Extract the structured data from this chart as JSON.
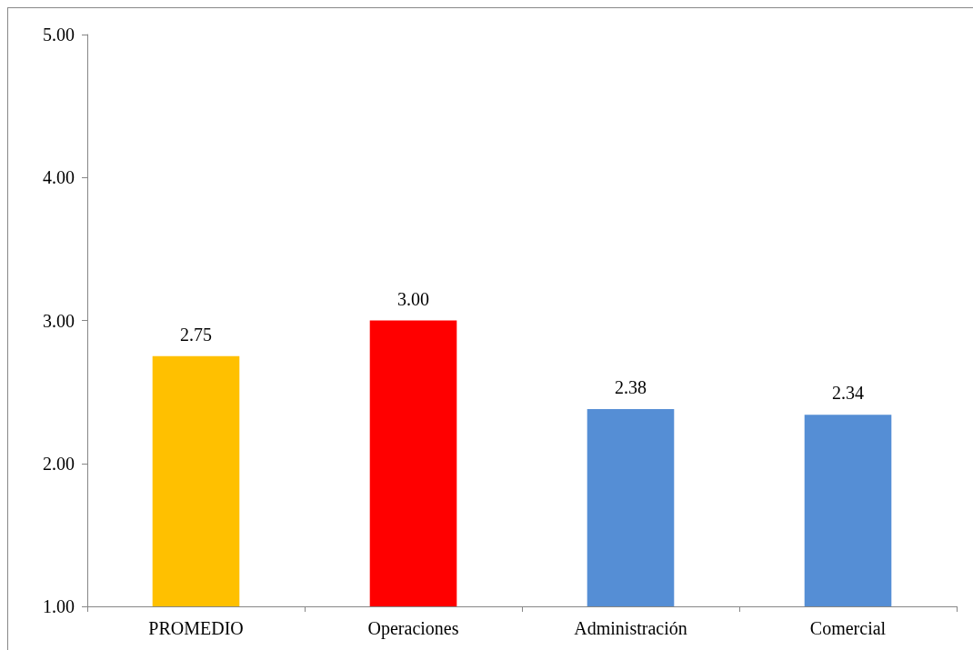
{
  "chart_data": {
    "type": "bar",
    "categories": [
      "PROMEDIO",
      "Operaciones",
      "Administración",
      "Comercial"
    ],
    "values": [
      2.75,
      3.0,
      2.38,
      2.34
    ],
    "colors": [
      "#ffc000",
      "#ff0000",
      "#558ed5",
      "#558ed5"
    ],
    "value_labels": [
      "2.75",
      "3.00",
      "2.38",
      "2.34"
    ],
    "ylim": [
      1,
      5
    ],
    "yticks": [
      {
        "value": 1,
        "label": "1.00"
      },
      {
        "value": 2,
        "label": "2.00"
      },
      {
        "value": 3,
        "label": "3.00"
      },
      {
        "value": 4,
        "label": "4.00"
      },
      {
        "value": 5,
        "label": "5.00"
      }
    ],
    "grid": false
  }
}
